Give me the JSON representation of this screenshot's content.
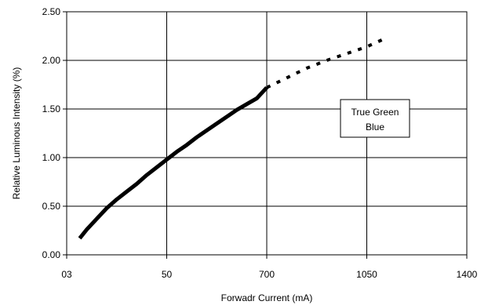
{
  "chart_data": {
    "type": "line",
    "xlabel": "Forwadr Current (mA)",
    "ylabel": "Relative Luminous Intensity (%)",
    "x_tick_labels": [
      "03",
      "50",
      "700",
      "1050",
      "1400"
    ],
    "xlim": [
      0,
      4
    ],
    "ylim": [
      0,
      2.5
    ],
    "y_ticks": [
      0,
      0.5,
      1.0,
      1.5,
      2.0,
      2.5
    ],
    "y_tick_labels": [
      "0.00",
      "0.50",
      "1.00",
      "1.50",
      "2.00",
      "2.50"
    ],
    "grid": true,
    "legend_text": [
      "True Green",
      "Blue"
    ],
    "legend_position": "right",
    "series": [
      {
        "style": "solid",
        "color": "#000000",
        "x": [
          0.13,
          0.2,
          0.3,
          0.4,
          0.5,
          0.6,
          0.7,
          0.8,
          0.9,
          1.0,
          1.1,
          1.2,
          1.3,
          1.4,
          1.5,
          1.6,
          1.7,
          1.8,
          1.9,
          2.0
        ],
        "y": [
          0.17,
          0.26,
          0.37,
          0.48,
          0.57,
          0.65,
          0.73,
          0.82,
          0.9,
          0.98,
          1.06,
          1.13,
          1.21,
          1.28,
          1.35,
          1.42,
          1.49,
          1.55,
          1.61,
          1.72
        ]
      },
      {
        "style": "dotted",
        "color": "#000000",
        "x": [
          2.0,
          2.2,
          2.4,
          2.6,
          2.8,
          3.0,
          3.15
        ],
        "y": [
          1.72,
          1.82,
          1.92,
          2.0,
          2.07,
          2.14,
          2.21
        ]
      }
    ]
  }
}
